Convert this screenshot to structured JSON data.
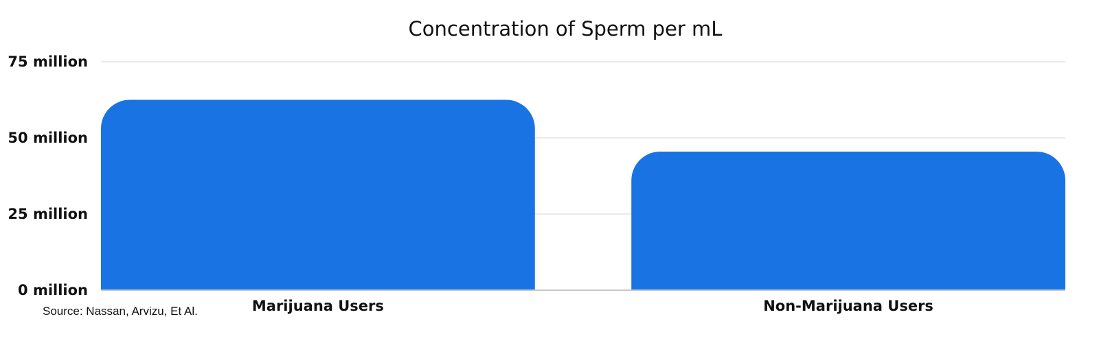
{
  "chart_data": {
    "type": "bar",
    "title": "Concentration of Sperm per mL",
    "categories": [
      "Marijuana Users",
      "Non-Marijuana Users"
    ],
    "values": [
      62.5,
      45.5
    ],
    "unit": "million",
    "ylim": [
      0,
      75
    ],
    "yticks": [
      0,
      25,
      50,
      75
    ],
    "ytick_labels": [
      "0 million",
      "25 million",
      "50 million",
      "75 million"
    ],
    "xlabel": "",
    "ylabel": "",
    "grid": true,
    "legend": "none",
    "bar_color": "#1a73e3"
  },
  "source": "Source: Nassan, Arvizu, Et Al."
}
